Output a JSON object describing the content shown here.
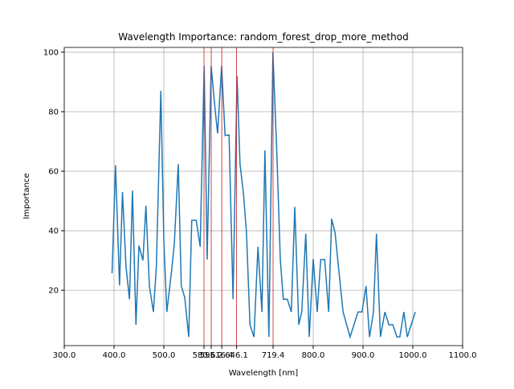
{
  "chart_data": {
    "type": "line",
    "title": "Wavelength Importance: random_forest_drop_more_method",
    "x_label": "Wavelength [nm]",
    "y_label": "Importance",
    "x": [
      396,
      403,
      411,
      417,
      424,
      431,
      437,
      444,
      450,
      458,
      464,
      471,
      479,
      485,
      494,
      500,
      506,
      515,
      521,
      529,
      535,
      542,
      550,
      556,
      565,
      573,
      581,
      587,
      595,
      602,
      608,
      616,
      623,
      631,
      639,
      647,
      653,
      660,
      666,
      673,
      681,
      689,
      697,
      703,
      711,
      719,
      727,
      734,
      740,
      748,
      756,
      763,
      771,
      777,
      785,
      792,
      800,
      808,
      815,
      823,
      831,
      837,
      844,
      852,
      860,
      874,
      890,
      898,
      906,
      913,
      921,
      927,
      935,
      944,
      952,
      960,
      968,
      974,
      982,
      989,
      1005
    ],
    "series": [
      {
        "name": "Importance",
        "color": "#1f77b4",
        "values": [
          25.7,
          62,
          21.6,
          53,
          28,
          17,
          53.5,
          8.4,
          35,
          30,
          48.4,
          21.4,
          12.7,
          28,
          87,
          36.5,
          12.7,
          25.7,
          35.4,
          62.4,
          21.4,
          17.6,
          4.3,
          43.5,
          43.5,
          34.6,
          95.4,
          30.3,
          95.4,
          82.4,
          72.7,
          95.4,
          72,
          72.2,
          17,
          92,
          62.4,
          52.4,
          39.2,
          8.4,
          4.3,
          34.6,
          12.7,
          67,
          4.3,
          100,
          65.7,
          30,
          17,
          17,
          12.7,
          48,
          8.4,
          12.7,
          39,
          4.3,
          30.5,
          12.7,
          30.3,
          30.3,
          12.7,
          44,
          39.2,
          25.7,
          12.7,
          4.3,
          12.7,
          12.7,
          21.4,
          4.3,
          12.7,
          39,
          4.3,
          12.7,
          8.4,
          8.4,
          4.3,
          4.3,
          12.7,
          4.3,
          12.7
        ]
      }
    ],
    "vlines": {
      "values": [
        580.6,
        595.2,
        616.4,
        646.1,
        719.4
      ],
      "color": "#d62728"
    },
    "xlim": [
      300,
      1100
    ],
    "xticks": [
      {
        "value": 300,
        "label": "300.0"
      },
      {
        "value": 400,
        "label": "400.0"
      },
      {
        "value": 500,
        "label": "500.0"
      },
      580.6,
      595.2,
      616.4,
      646.1,
      719.4,
      {
        "value": 800,
        "label": "800.0"
      },
      {
        "value": 900,
        "label": "900.0"
      },
      {
        "value": 1000,
        "label": "1000.0"
      },
      {
        "value": 1100,
        "label": "1100.0"
      }
    ],
    "ylim": [
      1.4,
      101.6
    ],
    "yticks": [
      20,
      40,
      60,
      80,
      100
    ],
    "grid": true
  }
}
